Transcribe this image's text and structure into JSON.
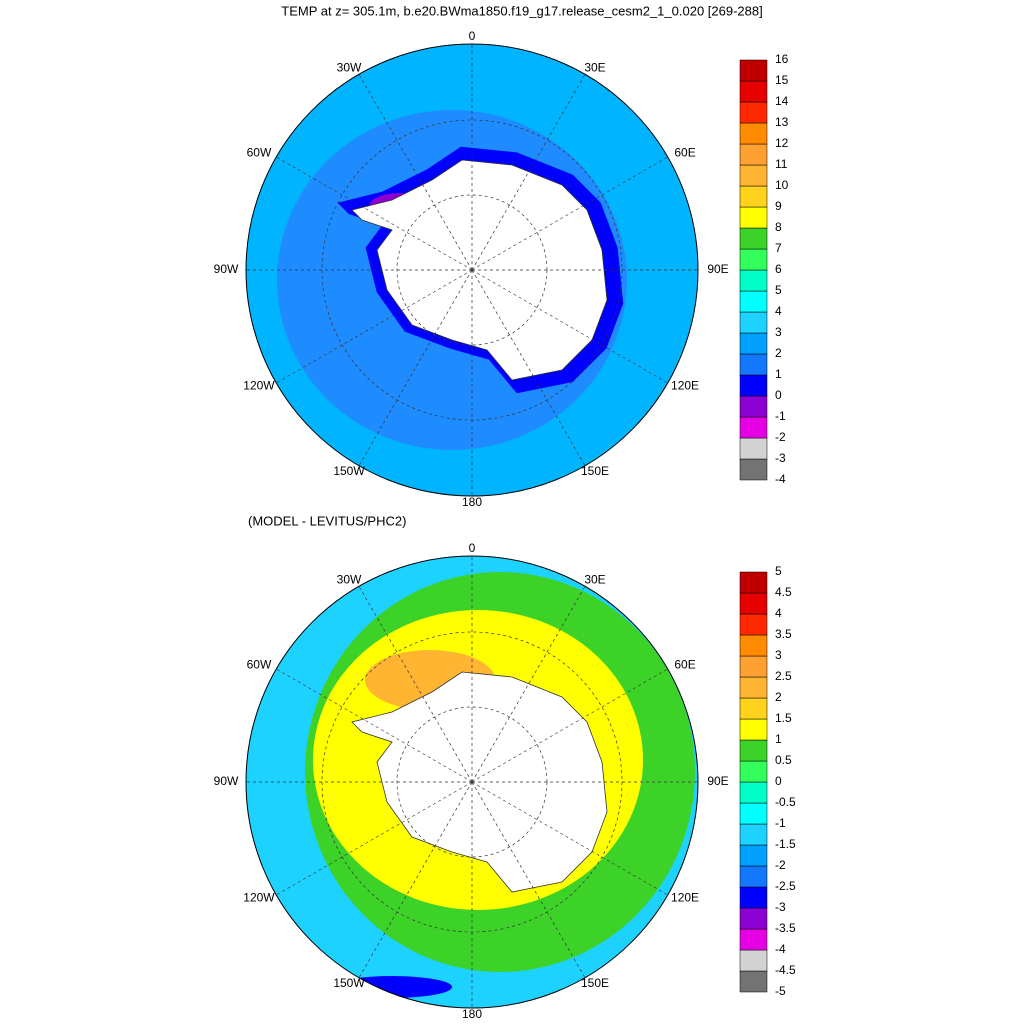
{
  "title": "TEMP at z= 305.1m, b.e20.BWma1850.f19_g17.release_cesm2_1_0.020 [269-288]",
  "maps": [
    {
      "lon_labels": [
        "0",
        "30E",
        "60E",
        "90E",
        "120E",
        "150E",
        "180",
        "150W",
        "120W",
        "90W",
        "60W",
        "30W"
      ],
      "colorbar": {
        "levels": [
          -4,
          -3,
          -2,
          -1,
          0,
          1,
          2,
          3,
          4,
          5,
          6,
          7,
          8,
          9,
          10,
          11,
          12,
          13,
          14,
          15,
          16
        ],
        "colors": [
          "#737373",
          "#d2d2d2",
          "#e600e6",
          "#8c00d2",
          "#0000ff",
          "#1478ff",
          "#00a0ff",
          "#1ed2ff",
          "#00ffff",
          "#00ffc8",
          "#32ff5a",
          "#3cd228",
          "#ffff00",
          "#ffd21e",
          "#ffb432",
          "#ffa032",
          "#ff8c00",
          "#ff2800",
          "#e60000",
          "#c00000"
        ]
      }
    },
    {
      "subtitle": "(MODEL - LEVITUS/PHC2)",
      "lon_labels": [
        "0",
        "30E",
        "60E",
        "90E",
        "120E",
        "150E",
        "180",
        "150W",
        "120W",
        "90W",
        "60W",
        "30W"
      ],
      "colorbar": {
        "levels": [
          -5,
          -4.5,
          -4,
          -3.5,
          -3,
          -2.5,
          -2,
          -1.5,
          -1,
          -0.5,
          0,
          0.5,
          1,
          1.5,
          2,
          2.5,
          3,
          3.5,
          4,
          4.5,
          5
        ],
        "colors": [
          "#737373",
          "#d2d2d2",
          "#e600e6",
          "#8c00d2",
          "#0000ff",
          "#1478ff",
          "#00a0ff",
          "#1ed2ff",
          "#00ffff",
          "#00ffc8",
          "#32ff5a",
          "#3cd228",
          "#ffff00",
          "#ffd21e",
          "#ffb432",
          "#ffa032",
          "#ff8c00",
          "#ff2800",
          "#e60000",
          "#c00000"
        ]
      }
    }
  ]
}
